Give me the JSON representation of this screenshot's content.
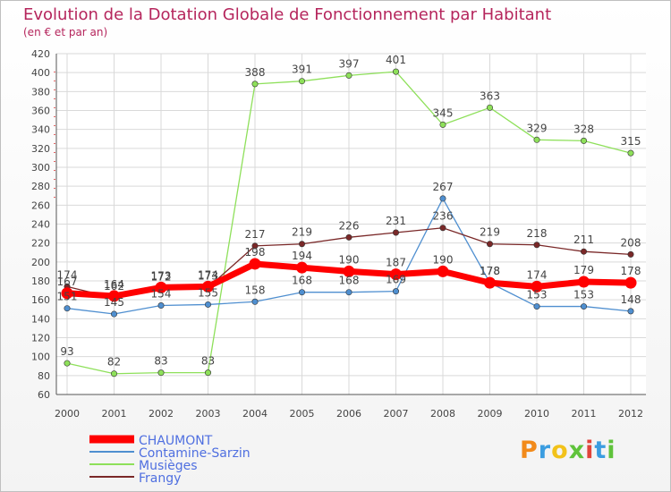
{
  "header": {
    "title": "Evolution de la Dotation Globale de Fonctionnement par Habitant",
    "subtitle": "(en € et par an)"
  },
  "logo": {
    "text": "Proxiti"
  },
  "colors": {
    "title": "#b5255c",
    "CHAUMONT": "#ff0000",
    "Contamine-Sarzin": "#4f8fd0",
    "Musièges": "#8ee05a",
    "Frangy": "#7a2828",
    "grid": "#d9d9d9",
    "legend_text": "#4f6fe0"
  },
  "chart_data": {
    "type": "line",
    "title": "Evolution de la Dotation Globale de Fonctionnement par Habitant",
    "subtitle": "(en € et par an)",
    "xlabel": "",
    "ylabel": "",
    "x": [
      2000,
      2001,
      2002,
      2003,
      2004,
      2005,
      2006,
      2007,
      2008,
      2009,
      2010,
      2011,
      2012
    ],
    "ylim": [
      60,
      420
    ],
    "yticks": [
      60,
      80,
      100,
      120,
      140,
      160,
      180,
      200,
      220,
      240,
      260,
      280,
      300,
      320,
      340,
      360,
      380,
      400,
      420
    ],
    "grid": true,
    "legend_position": "bottom-left",
    "series": [
      {
        "name": "CHAUMONT",
        "values": [
          167,
          164,
          173,
          174,
          198,
          194,
          190,
          187,
          190,
          178,
          174,
          179,
          178
        ]
      },
      {
        "name": "Contamine-Sarzin",
        "values": [
          151,
          145,
          154,
          155,
          158,
          168,
          168,
          169,
          267,
          178,
          153,
          153,
          148
        ]
      },
      {
        "name": "Musièges",
        "values": [
          93,
          82,
          83,
          83,
          388,
          391,
          397,
          401,
          345,
          363,
          329,
          328,
          315
        ]
      },
      {
        "name": "Frangy",
        "values": [
          174,
          162,
          172,
          173,
          217,
          219,
          226,
          231,
          236,
          219,
          218,
          211,
          208
        ]
      }
    ]
  }
}
